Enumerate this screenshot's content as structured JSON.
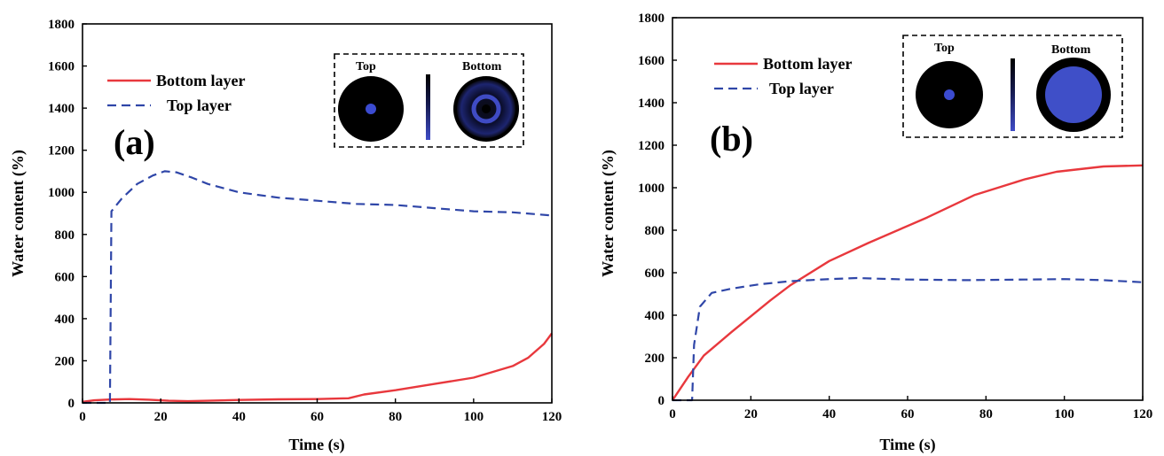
{
  "chart_data": [
    {
      "type": "line",
      "panel_label": "(a)",
      "xlabel": "Time (s)",
      "ylabel": "Water content (%)",
      "xlim": [
        0,
        120
      ],
      "ylim": [
        0,
        1800
      ],
      "xticks": [
        "0",
        "20",
        "40",
        "60",
        "80",
        "100",
        "120"
      ],
      "yticks": [
        "0",
        "200",
        "400",
        "600",
        "800",
        "1000",
        "1200",
        "1400",
        "1600",
        "1800"
      ],
      "legend_position": "top-left",
      "series": [
        {
          "name": "Bottom layer",
          "color": "#e8383d",
          "style": "solid",
          "x": [
            0,
            3,
            7,
            12,
            17,
            22,
            27,
            32,
            40,
            50,
            60,
            68,
            72,
            80,
            90,
            100,
            110,
            114,
            118,
            120
          ],
          "y": [
            5,
            12,
            16,
            18,
            15,
            10,
            8,
            10,
            14,
            17,
            18,
            22,
            40,
            60,
            90,
            120,
            175,
            215,
            280,
            330
          ]
        },
        {
          "name": "Top layer",
          "color": "#2f46a8",
          "style": "dashed",
          "x": [
            0,
            7,
            7.4,
            10,
            14,
            18,
            21,
            24,
            28,
            32,
            40,
            50,
            60,
            70,
            80,
            90,
            100,
            110,
            120
          ],
          "y": [
            0,
            0,
            910,
            970,
            1040,
            1080,
            1100,
            1095,
            1070,
            1040,
            1000,
            975,
            960,
            945,
            940,
            925,
            910,
            905,
            890
          ]
        }
      ],
      "inset": {
        "left_label": "Top",
        "right_label": "Bottom",
        "colorbar_top": "#000000",
        "colorbar_bottom": "#3f4cc7"
      }
    },
    {
      "type": "line",
      "panel_label": "(b)",
      "xlabel": "Time (s)",
      "ylabel": "Water content (%)",
      "xlim": [
        0,
        120
      ],
      "ylim": [
        0,
        1800
      ],
      "xticks": [
        "0",
        "20",
        "40",
        "60",
        "80",
        "100",
        "120"
      ],
      "yticks": [
        "0",
        "200",
        "400",
        "600",
        "800",
        "1000",
        "1200",
        "1400",
        "1600",
        "1800"
      ],
      "legend_position": "top-left",
      "series": [
        {
          "name": "Bottom layer",
          "color": "#e8383d",
          "style": "solid",
          "x": [
            0,
            4,
            8,
            15,
            25,
            30,
            40,
            50,
            65,
            77,
            90,
            98,
            110,
            120
          ],
          "y": [
            0,
            110,
            210,
            320,
            470,
            540,
            655,
            740,
            860,
            965,
            1040,
            1075,
            1100,
            1105
          ]
        },
        {
          "name": "Top layer",
          "color": "#2f46a8",
          "style": "dashed",
          "x": [
            0,
            5,
            5.5,
            7,
            10,
            15,
            22,
            30,
            40,
            47,
            60,
            75,
            90,
            100,
            110,
            120
          ],
          "y": [
            0,
            0,
            260,
            440,
            505,
            525,
            545,
            560,
            570,
            575,
            568,
            565,
            568,
            570,
            565,
            555
          ]
        }
      ],
      "inset": {
        "left_label": "Top",
        "right_label": "Bottom",
        "colorbar_top": "#000000",
        "colorbar_bottom": "#3f4cc7"
      }
    }
  ]
}
